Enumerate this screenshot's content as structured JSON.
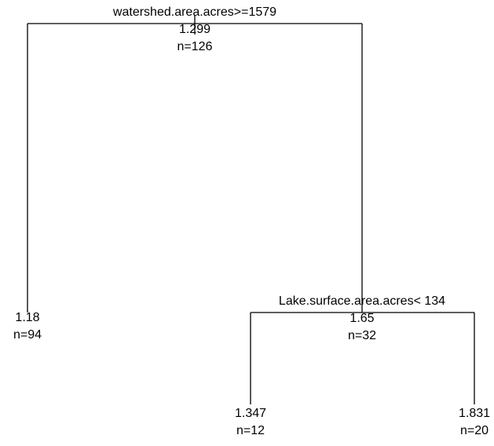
{
  "nodes": [
    {
      "split": "watershed.area.acres>=1579",
      "value": "1.299",
      "n": "n=126"
    },
    {
      "value": "1.18",
      "n": "n=94"
    },
    {
      "split": "Lake.surface.area.acres< 134",
      "value": "1.65",
      "n": "n=32"
    },
    {
      "value": "1.347",
      "n": "n=12"
    },
    {
      "value": "1.831",
      "n": "n=20"
    }
  ]
}
